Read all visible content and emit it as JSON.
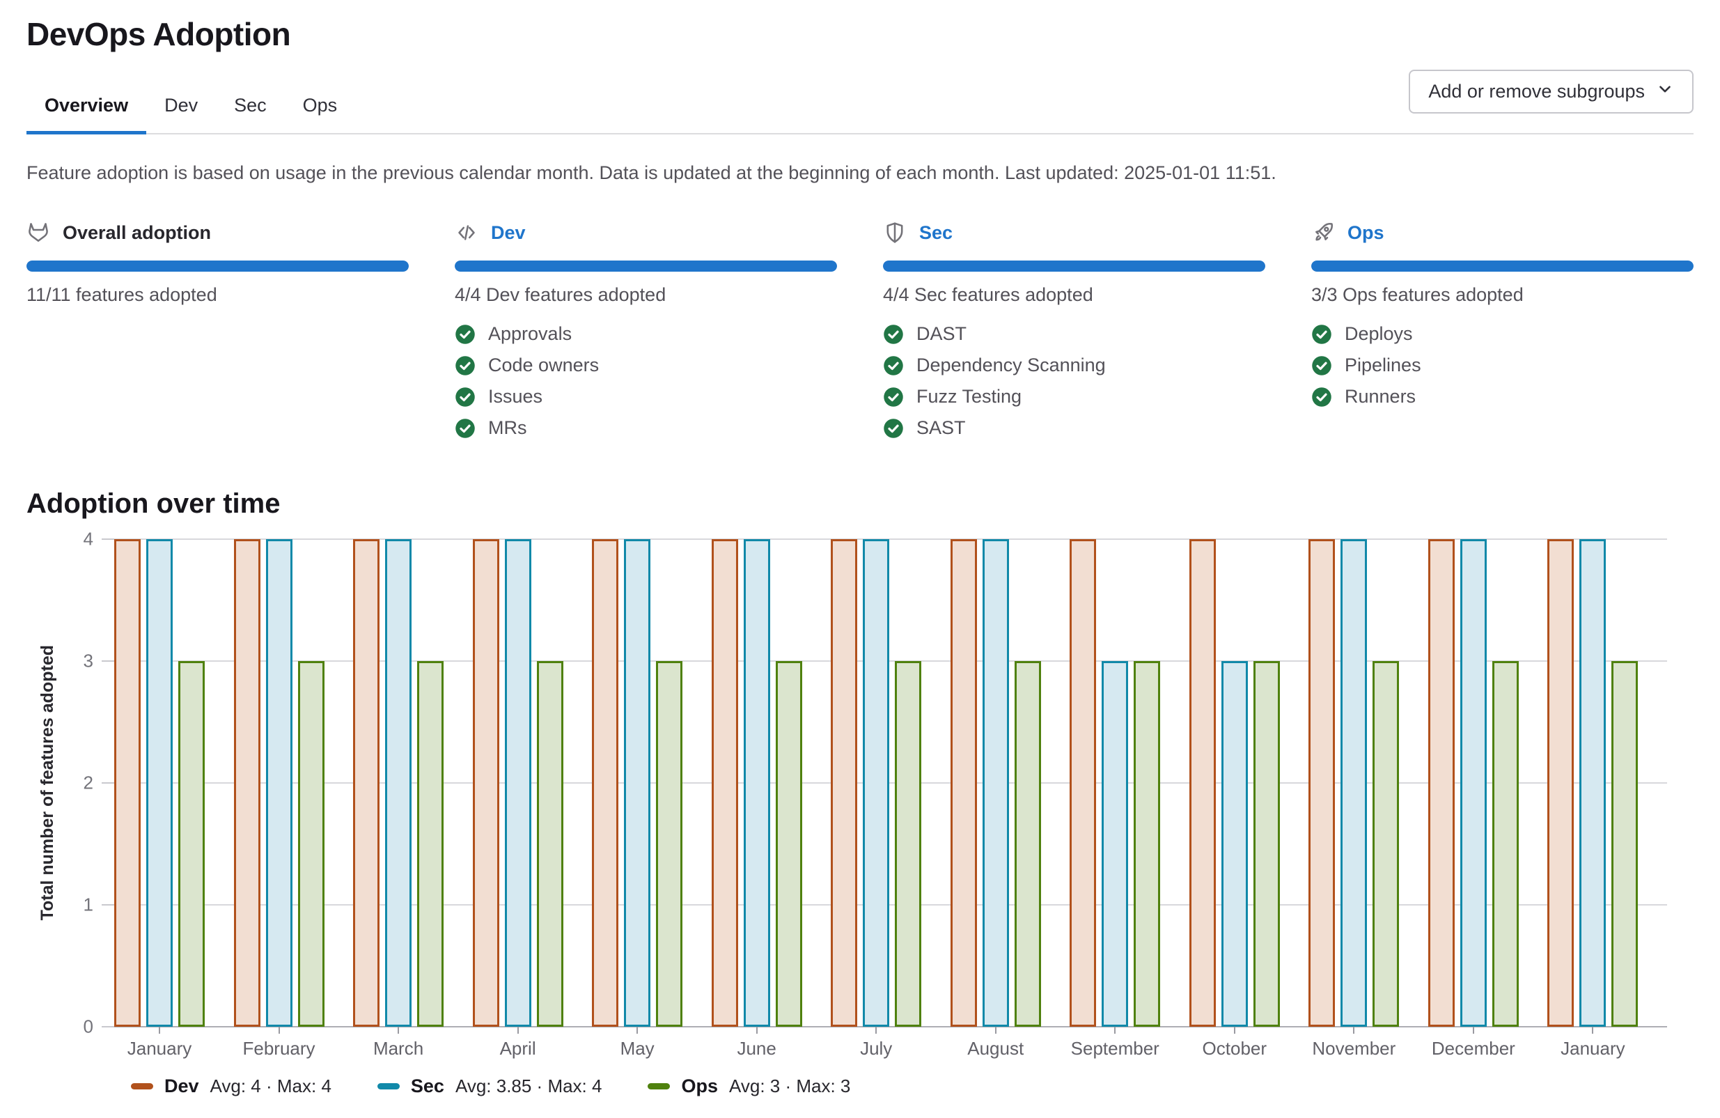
{
  "page": {
    "title": "DevOps Adoption"
  },
  "tabs": [
    {
      "label": "Overview",
      "active": true
    },
    {
      "label": "Dev",
      "active": false
    },
    {
      "label": "Sec",
      "active": false
    },
    {
      "label": "Ops",
      "active": false
    }
  ],
  "subgroups_button": {
    "label": "Add or remove subgroups"
  },
  "description": "Feature adoption is based on usage in the previous calendar month. Data is updated at the beginning of each month. Last updated: 2025-01-01 11:51.",
  "cards": [
    {
      "id": "overall",
      "icon": "tanuki-icon",
      "title": "Overall adoption",
      "title_is_link": false,
      "progress_percent": 100,
      "caption": "11/11 features adopted",
      "features": []
    },
    {
      "id": "dev",
      "icon": "code-icon",
      "title": "Dev",
      "title_is_link": true,
      "progress_percent": 100,
      "caption": "4/4 Dev features adopted",
      "features": [
        "Approvals",
        "Code owners",
        "Issues",
        "MRs"
      ]
    },
    {
      "id": "sec",
      "icon": "shield-icon",
      "title": "Sec",
      "title_is_link": true,
      "progress_percent": 100,
      "caption": "4/4 Sec features adopted",
      "features": [
        "DAST",
        "Dependency Scanning",
        "Fuzz Testing",
        "SAST"
      ]
    },
    {
      "id": "ops",
      "icon": "rocket-icon",
      "title": "Ops",
      "title_is_link": true,
      "progress_percent": 100,
      "caption": "3/3 Ops features adopted",
      "features": [
        "Deploys",
        "Pipelines",
        "Runners"
      ]
    }
  ],
  "chart_section": {
    "heading": "Adoption over time"
  },
  "chart_data": {
    "type": "bar",
    "title": "Adoption over time",
    "categories": [
      "January",
      "February",
      "March",
      "April",
      "May",
      "June",
      "July",
      "August",
      "September",
      "October",
      "November",
      "December",
      "January"
    ],
    "series": [
      {
        "name": "Dev",
        "stroke": "#b1511c",
        "fill": "#f2ded2",
        "values": [
          4,
          4,
          4,
          4,
          4,
          4,
          4,
          4,
          4,
          4,
          4,
          4,
          4
        ],
        "legend_stats": "Avg: 4 · Max: 4"
      },
      {
        "name": "Sec",
        "stroke": "#1189a9",
        "fill": "#d6e9f1",
        "values": [
          4,
          4,
          4,
          4,
          4,
          4,
          4,
          4,
          3,
          3,
          4,
          4,
          4
        ],
        "legend_stats": "Avg: 3.85 · Max: 4"
      },
      {
        "name": "Ops",
        "stroke": "#4f810e",
        "fill": "#dbe5ce",
        "values": [
          3,
          3,
          3,
          3,
          3,
          3,
          3,
          3,
          3,
          3,
          3,
          3,
          3
        ],
        "legend_stats": "Avg: 3 · Max: 3"
      }
    ],
    "xlabel": "",
    "ylabel": "Total number of features adopted",
    "ylim": [
      0,
      4
    ],
    "yticks": [
      0,
      1,
      2,
      3,
      4
    ],
    "grid": true,
    "legend_position": "bottom"
  }
}
